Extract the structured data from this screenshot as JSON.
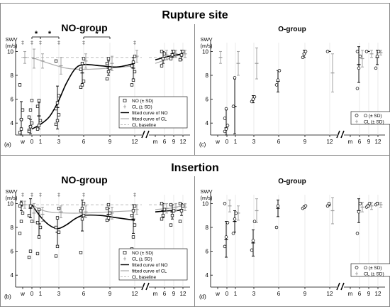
{
  "figure": {
    "section_titles": [
      "Rupture site",
      "Insertion"
    ]
  },
  "chart_data": [
    {
      "id": "a",
      "panel_label": "(a)",
      "title": "NO-group",
      "type": "scatter",
      "ylabel": "SWV\n(m/s)",
      "ylim": [
        3,
        10.5
      ],
      "yticks": [
        4,
        6,
        8,
        10
      ],
      "xticklabels": [
        "w",
        "0",
        "1",
        "3",
        "6",
        "9",
        "12",
        "m",
        "6",
        "9",
        "12"
      ],
      "legend": [
        "NO (± SD)",
        "CL (± SD)",
        "fitted curve of NO",
        "fitted curve of CL",
        "CL baseline"
      ],
      "significance": [
        {
          "from": 0,
          "to": 1,
          "label": "*"
        },
        {
          "from": 1,
          "to": 3,
          "label": "*"
        },
        {
          "from": 6,
          "to": 9,
          "label": "*"
        }
      ],
      "daggers": [
        "w",
        "0",
        "1",
        "3",
        "6",
        "12"
      ],
      "cl_baseline": 9.5,
      "no_points": {
        "w": [
          3.2,
          4.3,
          5.1,
          7.2,
          3.5
        ],
        "0": [
          3.4,
          3.7,
          4.0,
          4.5,
          5.1,
          5.9,
          3.3
        ],
        "1": [
          3.5,
          3.8,
          4.2,
          5.4,
          5.9
        ],
        "3": [
          3.9,
          4.2,
          4.7,
          5.2,
          5.7,
          6.3,
          9.2
        ],
        "6": [
          7.0,
          7.2,
          7.5,
          8.5,
          9.0,
          9.4
        ],
        "9": [
          7.7,
          8.3,
          8.6,
          9.0,
          9.4
        ],
        "12": [
          7.2,
          7.6,
          8.3,
          8.8,
          9.1,
          9.6
        ],
        "m6": [
          8.8,
          9.4,
          9.8,
          10.0
        ],
        "m9": [
          9.4,
          9.7,
          10.0
        ],
        "m12": [
          9.3,
          9.7,
          10.0
        ]
      },
      "no_mean": {
        "w": [
          4.3,
          1.5
        ],
        "0": [
          3.7,
          0.6
        ],
        "1": [
          4.6,
          1.1
        ],
        "3": [
          5.3,
          1.8
        ],
        "6": [
          8.2,
          0.9
        ],
        "9": [
          8.6,
          0.6
        ],
        "12": [
          8.6,
          0.9
        ],
        "m6": [
          9.5,
          0.5
        ],
        "m9": [
          9.8,
          0.3
        ],
        "m12": [
          9.7,
          0.4
        ]
      },
      "cl_mean": {
        "w": [
          9.5,
          0.5
        ],
        "0": [
          9.4,
          0.8
        ],
        "1": [
          9.2,
          0.6
        ],
        "3": [
          8.8,
          0.7
        ],
        "6": [
          9.2,
          0.6
        ],
        "9": [
          9.0,
          0.6
        ],
        "12": [
          9.6,
          0.5
        ],
        "m6": [
          9.7,
          0.4
        ],
        "m9": [
          9.8,
          0.3
        ],
        "m12": [
          9.8,
          0.3
        ]
      },
      "no_curve": [
        [
          0,
          3.5
        ],
        [
          1,
          3.9
        ],
        [
          2,
          4.5
        ],
        [
          3,
          5.7
        ],
        [
          4,
          7.3
        ],
        [
          5,
          8.5
        ],
        [
          6,
          8.9
        ],
        [
          8,
          8.8
        ],
        [
          10,
          8.7
        ],
        [
          12,
          9.0
        ]
      ],
      "no_curve_m": [
        [
          0,
          9.3
        ],
        [
          6,
          9.6
        ],
        [
          9,
          9.7
        ],
        [
          12,
          9.8
        ]
      ],
      "cl_curve": [
        [
          0,
          9.5
        ],
        [
          2,
          9.0
        ],
        [
          4,
          8.6
        ],
        [
          6,
          8.5
        ],
        [
          9,
          8.6
        ],
        [
          12,
          8.8
        ]
      ],
      "cl_curve_m": [
        [
          0,
          9.0
        ],
        [
          6,
          9.4
        ],
        [
          9,
          9.6
        ],
        [
          12,
          9.8
        ]
      ]
    },
    {
      "id": "c",
      "panel_label": "(c)",
      "title": "O-group",
      "type": "scatter",
      "ylabel": "SWV\n(m/s)",
      "ylim": [
        3,
        10.5
      ],
      "yticks": [
        4,
        6,
        8,
        10
      ],
      "xticklabels": [
        "w",
        "0",
        "1",
        "3",
        "6",
        "9",
        "12",
        "m",
        "6",
        "9",
        "12"
      ],
      "legend": [
        "O (± SD)",
        "CL (± SD)"
      ],
      "o_points": {
        "0": [
          3.3,
          3.5,
          3.8,
          4.4,
          5.2
        ],
        "1": [
          5.4,
          7.8
        ],
        "3": [
          5.8,
          6.0,
          6.2
        ],
        "6": [
          7.2,
          7.6,
          8.4
        ],
        "9": [
          9.5,
          9.8,
          10.0
        ],
        "12": [
          10.0
        ],
        "m6": [
          6.9,
          8.6,
          9.6,
          10.0
        ],
        "m9": [
          10.0
        ],
        "m12": [
          8.6,
          9.6,
          10.0
        ]
      },
      "o_mean": {
        "0": [
          3.6,
          1.5
        ],
        "1": [
          5.4,
          2.3
        ],
        "3": [
          6.0,
          0.3
        ],
        "6": [
          7.5,
          0.9
        ],
        "9": [
          9.8,
          0.3
        ],
        "12": [
          10.0,
          0.0
        ],
        "m6": [
          8.9,
          1.5
        ],
        "m9": [
          10.0,
          0.0
        ],
        "m12": [
          9.5,
          0.6
        ]
      },
      "cl_mean": {
        "w": [
          9.5,
          0.5
        ],
        "1": [
          9.0,
          1.0
        ],
        "3": [
          9.0,
          1.3
        ],
        "12": [
          8.2,
          1.6
        ],
        "m6": [
          9.4,
          0.7
        ],
        "m9": [
          9.8,
          0.3
        ],
        "m12": [
          9.9,
          0.2
        ]
      }
    },
    {
      "id": "b",
      "panel_label": "(b)",
      "title": "NO-group",
      "type": "scatter",
      "ylabel": "SWV\n(m/s)",
      "ylim": [
        3,
        10.5
      ],
      "yticks": [
        4,
        6,
        8,
        10
      ],
      "xticklabels": [
        "w",
        "0",
        "1",
        "3",
        "6",
        "9",
        "12",
        "m",
        "6",
        "9",
        "12"
      ],
      "legend": [
        "NO (± SD)",
        "CL (± SD)",
        "fitted curve of NO",
        "fitted curve of CL",
        "CL baseline"
      ],
      "daggers": [
        "w",
        "0",
        "1",
        "3",
        "6",
        "12"
      ],
      "cl_baseline": 9.9,
      "no_points": {
        "w": [
          7.5,
          8.5,
          9.2,
          9.8,
          10.0
        ],
        "0": [
          5.5,
          6.0,
          8.5,
          9.0,
          9.8
        ],
        "1": [
          5.8,
          7.2,
          8.0,
          8.4,
          9.5
        ],
        "3": [
          5.6,
          6.4,
          7.6,
          8.0,
          8.8,
          9.6
        ],
        "6": [
          5.9,
          8.7,
          9.0,
          9.4,
          9.6,
          10.0
        ],
        "9": [
          8.6,
          8.8,
          9.2,
          9.6,
          9.9
        ],
        "12": [
          6.2,
          7.2,
          8.2,
          9.0,
          9.4,
          9.8
        ],
        "m6": [
          8.7,
          9.0,
          9.5,
          10.0
        ],
        "m9": [
          8.2,
          9.0,
          9.4,
          9.9
        ],
        "m12": [
          8.5,
          9.4,
          9.8,
          10.0
        ]
      },
      "no_mean": {
        "w": [
          9.8,
          0.4
        ],
        "0": [
          9.6,
          0.8
        ],
        "1": [
          8.3,
          1.1
        ],
        "3": [
          7.6,
          1.3
        ],
        "6": [
          9.0,
          1.3
        ],
        "9": [
          9.1,
          0.5
        ],
        "12": [
          8.7,
          1.2
        ],
        "m6": [
          9.4,
          0.6
        ],
        "m9": [
          9.3,
          0.6
        ],
        "m12": [
          9.5,
          0.5
        ]
      },
      "cl_mean": {
        "w": [
          9.9,
          0.3
        ],
        "0": [
          9.2,
          0.8
        ],
        "1": [
          9.1,
          0.6
        ],
        "3": [
          9.3,
          0.5
        ],
        "6": [
          9.3,
          0.5
        ],
        "9": [
          9.2,
          0.5
        ],
        "12": [
          9.5,
          0.4
        ],
        "m6": [
          9.6,
          0.4
        ],
        "m9": [
          9.7,
          0.3
        ],
        "m12": [
          9.7,
          0.3
        ]
      },
      "no_curve": [
        [
          0,
          9.9
        ],
        [
          1,
          8.9
        ],
        [
          2,
          8.2
        ],
        [
          3,
          7.9
        ],
        [
          4,
          8.2
        ],
        [
          5,
          8.7
        ],
        [
          6,
          9.0
        ],
        [
          8,
          9.0
        ],
        [
          10,
          8.8
        ],
        [
          12,
          8.6
        ]
      ],
      "no_curve_m": [
        [
          0,
          9.3
        ],
        [
          6,
          9.4
        ],
        [
          9,
          9.4
        ],
        [
          12,
          9.5
        ]
      ],
      "cl_curve": [
        [
          0,
          9.9
        ],
        [
          1,
          9.5
        ],
        [
          2,
          9.3
        ],
        [
          4,
          9.2
        ],
        [
          6,
          9.2
        ],
        [
          9,
          9.3
        ],
        [
          12,
          9.4
        ]
      ],
      "cl_curve_m": [
        [
          0,
          9.5
        ],
        [
          6,
          9.6
        ],
        [
          9,
          9.7
        ],
        [
          12,
          9.8
        ]
      ]
    },
    {
      "id": "d",
      "panel_label": "(d)",
      "title": "O-group",
      "type": "scatter",
      "ylabel": "SWV\n(m/s)",
      "ylim": [
        3,
        10.5
      ],
      "yticks": [
        4,
        6,
        8,
        10
      ],
      "xticklabels": [
        "w",
        "0",
        "1",
        "3",
        "6",
        "9",
        "12",
        "m",
        "6",
        "9",
        "12"
      ],
      "legend": [
        "O (± SD)",
        "CL (± SD)"
      ],
      "o_points": {
        "0": [
          6.4,
          7.2,
          8.4,
          10.0
        ],
        "1": [
          7.5,
          8.7,
          9.2
        ],
        "3": [
          6.1,
          6.9,
          8.5
        ],
        "6": [
          8.0,
          9.8
        ],
        "9": [
          9.6,
          9.7,
          9.8
        ],
        "12": [
          9.8,
          10.0
        ],
        "m6": [
          7.5,
          9.3,
          10.0
        ],
        "m9": [
          9.7,
          9.8,
          10.0
        ],
        "m12": [
          9.9,
          10.0
        ]
      },
      "o_mean": {
        "0": [
          7.0,
          1.5
        ],
        "1": [
          8.5,
          0.9
        ],
        "3": [
          6.7,
          1.1
        ],
        "6": [
          9.6,
          0.7
        ],
        "9": [
          9.7,
          0.1
        ],
        "12": [
          9.9,
          0.1
        ],
        "m6": [
          9.4,
          1.0
        ],
        "m9": [
          9.8,
          0.1
        ],
        "m12": [
          10.0,
          0.1
        ]
      },
      "cl_mean": {
        "0": [
          9.8,
          0.5
        ],
        "1": [
          9.2,
          0.6
        ],
        "3": [
          9.4,
          1.0
        ],
        "12": [
          9.4,
          1.1
        ],
        "m6": [
          9.7,
          0.4
        ],
        "m9": [
          9.8,
          0.3
        ],
        "m12": [
          9.9,
          0.2
        ]
      }
    }
  ]
}
